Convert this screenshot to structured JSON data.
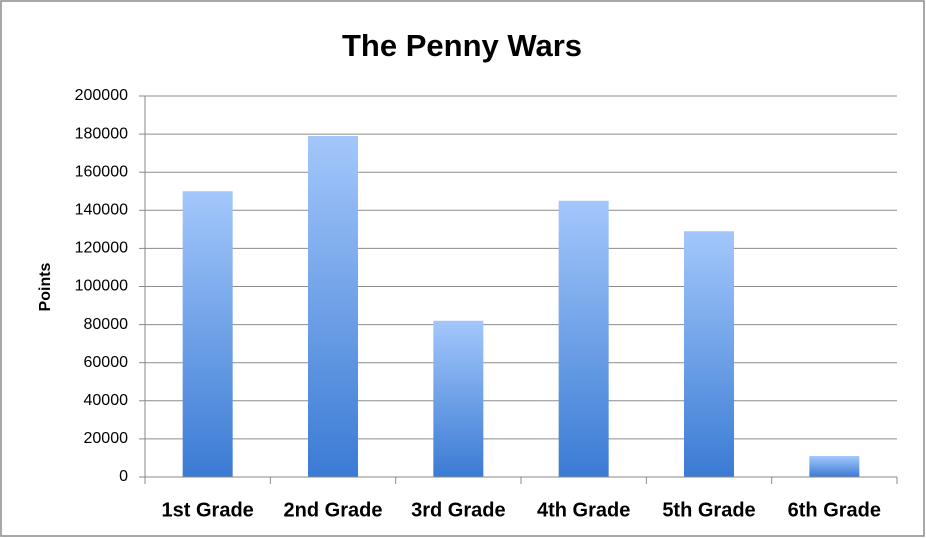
{
  "chart_data": {
    "type": "bar",
    "title": "The Penny Wars",
    "y_label": "Points",
    "categories": [
      "1st Grade",
      "2nd Grade",
      "3rd Grade",
      "4th Grade",
      "5th Grade",
      "6th Grade"
    ],
    "values": [
      150000,
      179000,
      82000,
      145000,
      129000,
      11000
    ],
    "gradient": {
      "top": "#a3c7fb",
      "bottom": "#3b7bd4"
    },
    "ylim": [
      0,
      200000
    ],
    "yticks": [
      0,
      20000,
      40000,
      60000,
      80000,
      100000,
      120000,
      140000,
      160000,
      180000,
      200000
    ],
    "grid": true
  }
}
